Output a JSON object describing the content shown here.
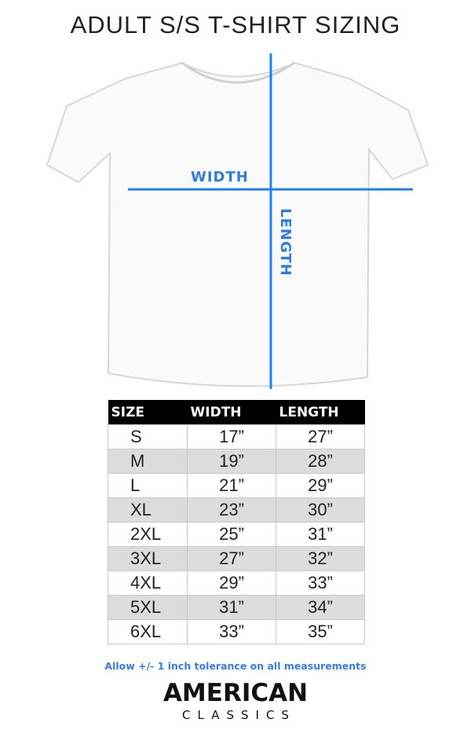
{
  "title": "ADULT S/S T-SHIRT SIZING",
  "diagram": {
    "width_label": "WIDTH",
    "length_label": "LENGTH",
    "line_color": "#1e7ff0"
  },
  "table": {
    "headers": [
      "SIZE",
      "WIDTH",
      "LENGTH"
    ],
    "rows": [
      [
        "S",
        "17”",
        "27”"
      ],
      [
        "M",
        "19”",
        "28”"
      ],
      [
        "L",
        "21”",
        "29”"
      ],
      [
        "XL",
        "23”",
        "30”"
      ],
      [
        "2XL",
        "25”",
        "31”"
      ],
      [
        "3XL",
        "27”",
        "32”"
      ],
      [
        "4XL",
        "29”",
        "33”"
      ],
      [
        "5XL",
        "31”",
        "34”"
      ],
      [
        "6XL",
        "33”",
        "35”"
      ]
    ]
  },
  "note": "Allow +/- 1 inch tolerance on all measurements",
  "brand": {
    "line1": "AMERICAN",
    "line2": "CLASSICS"
  }
}
